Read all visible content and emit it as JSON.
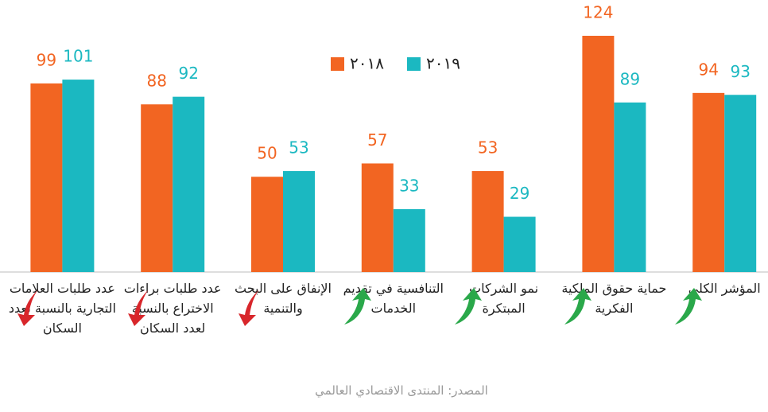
{
  "chart_data": {
    "type": "bar",
    "categories": [
      "عدد طلبات العلامات التجارية بالنسبة لعدد السكان",
      "عدد طلبات براءات الاختراع بالنسبة لعدد السكان",
      "الإنفاق على البحث والتنمية",
      "التنافسية في تقديم الخدمات",
      "نمو الشركات المبتكرة",
      "حماية حقوق الملكية الفكرية",
      "المؤشر الكلي"
    ],
    "series": [
      {
        "name": "٢٠١٨",
        "color": "#f26522",
        "values": [
          99,
          88,
          50,
          57,
          53,
          124,
          94
        ]
      },
      {
        "name": "٢٠١٩",
        "color": "#1bb8c1",
        "values": [
          101,
          92,
          53,
          33,
          29,
          89,
          93
        ]
      }
    ],
    "source": "المصدر: المنتدى الاقتصادي العالمي"
  }
}
